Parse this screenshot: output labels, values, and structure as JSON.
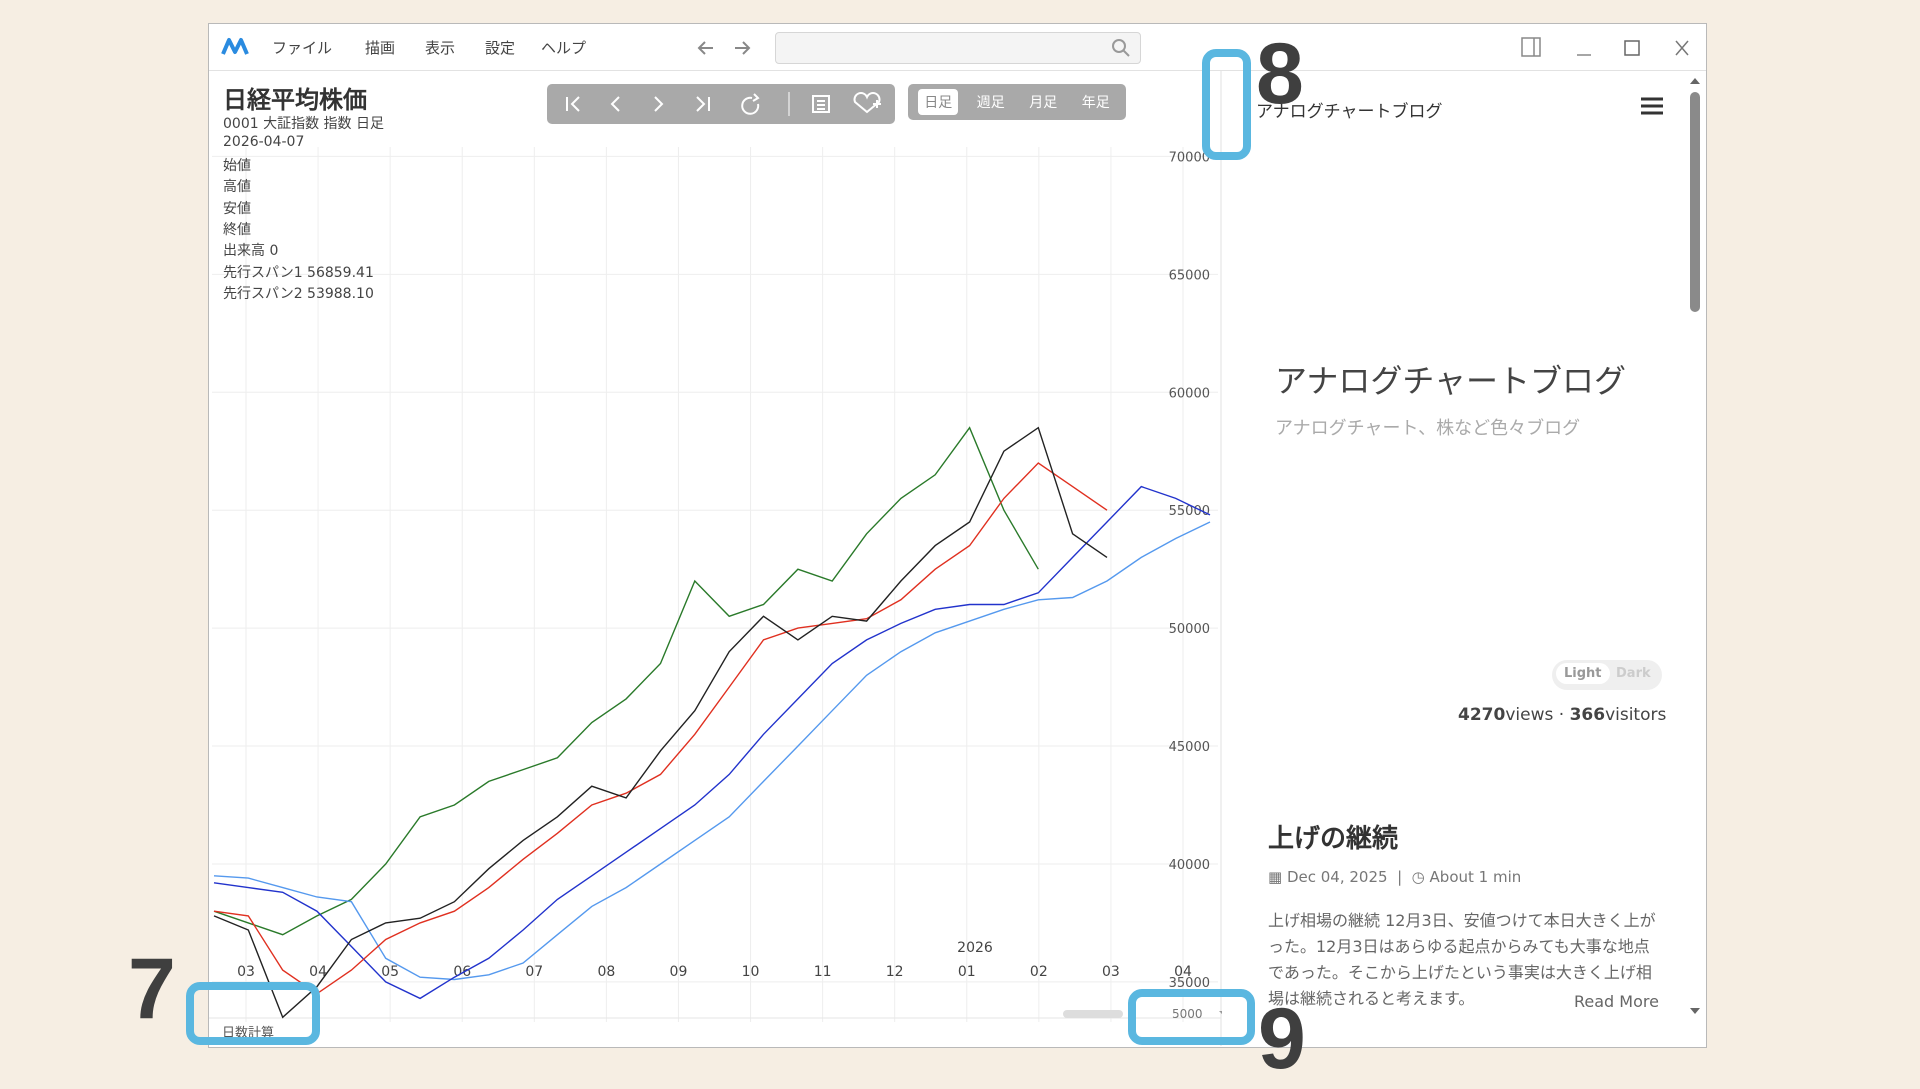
{
  "window": {
    "menu": [
      "ファイル",
      "描画",
      "表示",
      "設定",
      "ヘルプ"
    ]
  },
  "chart_panel": {
    "title": "日経平均株価",
    "subtitle": "0001 大証指数 指数 日足",
    "date": "2026-04-07",
    "fields": [
      "始値",
      "高値",
      "安値",
      "終値",
      "出来高 0",
      "先行スパン1 56859.41",
      "先行スパン2 53988.10"
    ],
    "timeframes": [
      "日足",
      "週足",
      "月足",
      "年足"
    ],
    "bottom_label": "日数計算",
    "count": "5000"
  },
  "chart_data": {
    "type": "line",
    "ylim": [
      33300,
      70400
    ],
    "yticks": [
      35000,
      40000,
      45000,
      50000,
      55000,
      60000,
      65000,
      70000
    ],
    "month_labels": [
      "03",
      "04",
      "05",
      "06",
      "07",
      "08",
      "09",
      "10",
      "11",
      "12",
      "01",
      "02",
      "03",
      "04"
    ],
    "year_label": "2026",
    "series": [
      {
        "color": "#2a7a2a",
        "values": [
          38000,
          37500,
          37000,
          37800,
          38500,
          40000,
          42000,
          42500,
          43500,
          44000,
          44500,
          46000,
          47000,
          48500,
          52000,
          50500,
          51000,
          52500,
          52000,
          54000,
          55500,
          56500,
          58500,
          55000,
          52500,
          null,
          null,
          null,
          null,
          null
        ]
      },
      {
        "color": "#5599ee",
        "values": [
          39500,
          39400,
          39000,
          38600,
          38400,
          36000,
          35200,
          35100,
          35300,
          35800,
          37000,
          38200,
          39000,
          40000,
          41000,
          42000,
          43500,
          45000,
          46500,
          48000,
          49000,
          49800,
          50300,
          50800,
          51200,
          51300,
          52000,
          53000,
          53800,
          54500
        ]
      },
      {
        "color": "#2233cc",
        "values": [
          39200,
          39000,
          38800,
          38000,
          36500,
          35000,
          34300,
          35200,
          36000,
          37200,
          38500,
          39500,
          40500,
          41500,
          42500,
          43800,
          45500,
          47000,
          48500,
          49500,
          50200,
          50800,
          51000,
          51000,
          51500,
          53000,
          54500,
          56000,
          55500,
          54800
        ]
      },
      {
        "color": "#e03020",
        "values": [
          38000,
          37800,
          35500,
          34500,
          35500,
          36800,
          37500,
          38000,
          39000,
          40200,
          41300,
          42500,
          43000,
          43800,
          45500,
          47500,
          49500,
          50000,
          50200,
          50400,
          51200,
          52500,
          53500,
          55500,
          57000,
          56000,
          55000,
          null,
          null,
          null
        ]
      },
      {
        "color": "#222222",
        "values": [
          37800,
          37200,
          33500,
          34800,
          36800,
          37500,
          37700,
          38400,
          39800,
          41000,
          42000,
          43300,
          42800,
          44800,
          46500,
          49000,
          50500,
          49500,
          50500,
          50300,
          52000,
          53500,
          54500,
          57500,
          58500,
          54000,
          53000,
          null,
          null,
          null
        ]
      }
    ]
  },
  "blog": {
    "site_name": "アナログチャートブログ",
    "hero_title": "アナログチャートブログ",
    "hero_subtitle": "アナログチャート、株など色々ブログ",
    "theme_light": "Light",
    "theme_dark": "Dark",
    "views": "4270",
    "views_label": "views",
    "visitors": "366",
    "visitors_label": "visitors",
    "post_title": "上げの継続",
    "post_date": "Dec 04, 2025",
    "read_time": "About 1 min",
    "excerpt": "上げ相場の継続 12月3日、安値つけて本日大きく上がった。12月3日はあらゆる起点からみても大事な地点であった。そこから上げたという事実は大きく上げ相場は継続されると考えます。",
    "read_more": "Read More"
  },
  "annotations": [
    "7",
    "8",
    "9"
  ]
}
